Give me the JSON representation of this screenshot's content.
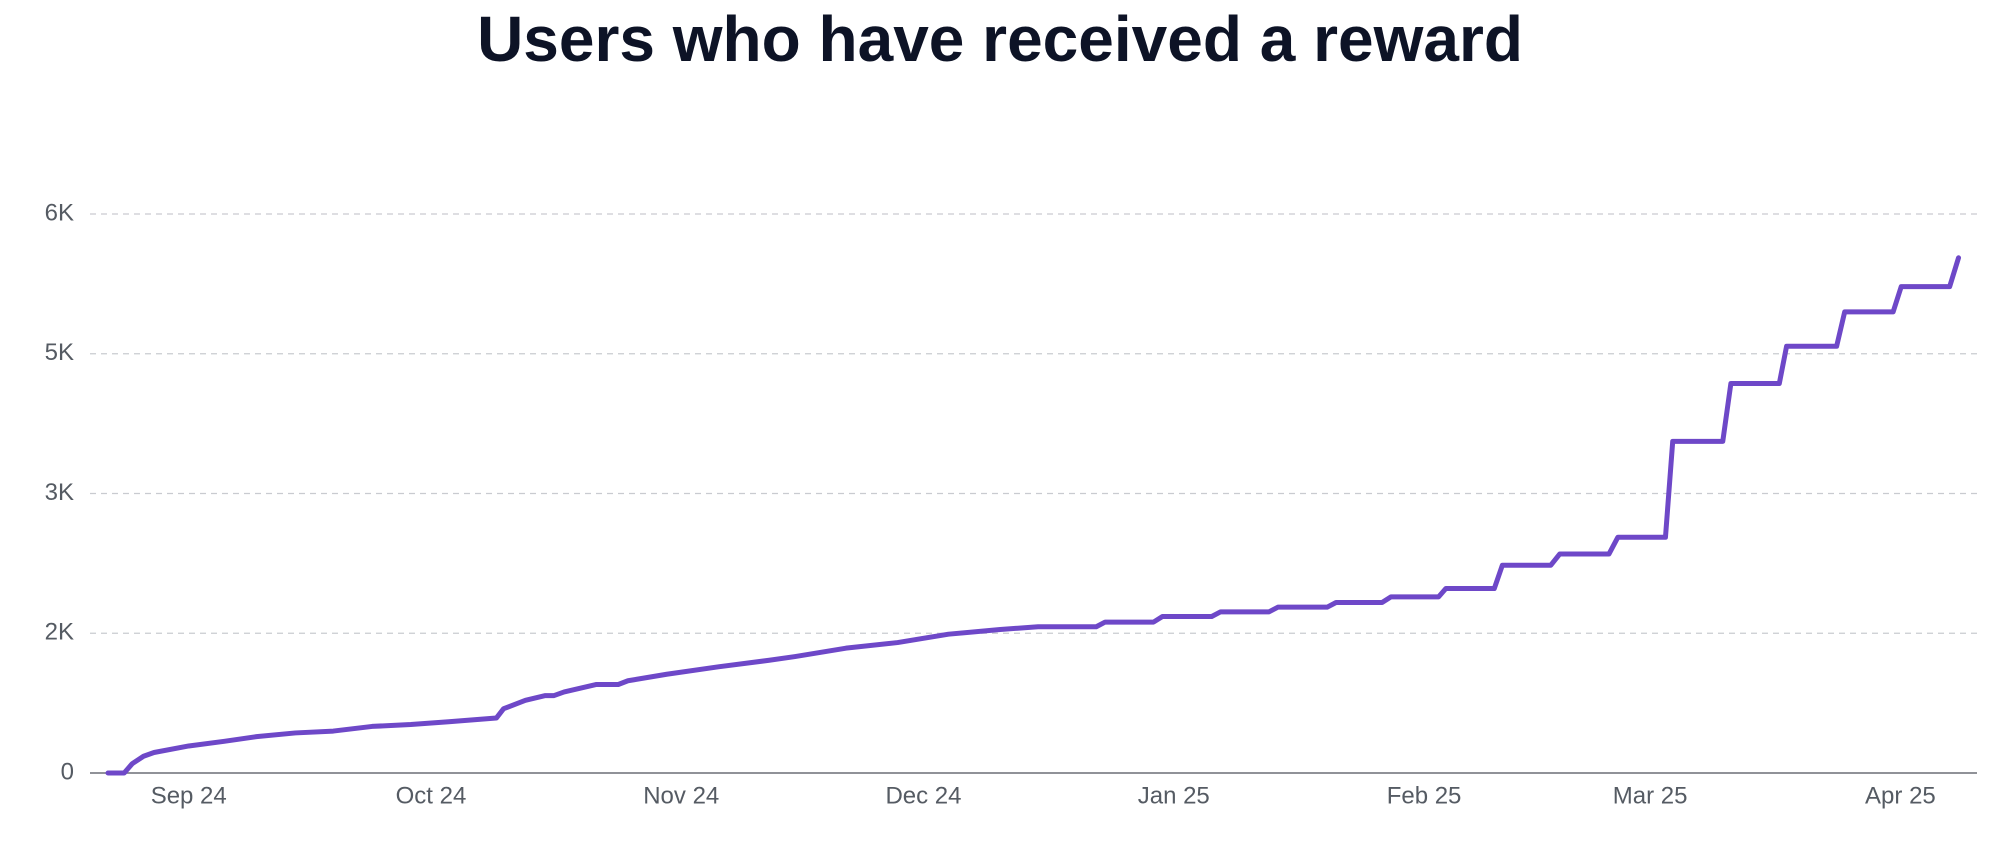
{
  "chart_data": {
    "type": "line",
    "title": "Users who have received a reward",
    "color": "#6e48c8",
    "grid": true,
    "xlim": [
      0,
      230
    ],
    "xticks": [
      {
        "value": 10,
        "label": "Sep 24"
      },
      {
        "value": 40,
        "label": "Oct 24"
      },
      {
        "value": 71,
        "label": "Nov 24"
      },
      {
        "value": 101,
        "label": "Dec 24"
      },
      {
        "value": 132,
        "label": "Jan 25"
      },
      {
        "value": 163,
        "label": "Feb 25"
      },
      {
        "value": 191,
        "label": "Mar 25"
      },
      {
        "value": 222,
        "label": "Apr 25"
      }
    ],
    "ylim": [
      0,
      6000
    ],
    "yticks": [
      0,
      {
        "value": 1500,
        "label": "2K"
      },
      {
        "value": 3000,
        "label": "3K"
      },
      {
        "value": 4500,
        "label": "5K"
      },
      {
        "value": 6000,
        "label": "6K"
      }
    ],
    "x": [
      0,
      2,
      3,
      4.4,
      5.7,
      10,
      14.4,
      18.4,
      23.2,
      27.9,
      32.7,
      37.5,
      42.2,
      48.1,
      49,
      51.7,
      54.1,
      55.2,
      56.5,
      60.5,
      63.2,
      64.4,
      69.2,
      75.6,
      81.9,
      85.1,
      91.4,
      97.8,
      104.1,
      110.5,
      115.2,
      122.4,
      123.5,
      129.5,
      130.6,
      136.7,
      137.8,
      143.8,
      144.9,
      151,
      152.1,
      157.8,
      158.9,
      164.8,
      165.7,
      171.7,
      172.7,
      178.7,
      179.8,
      185.9,
      187,
      192.9,
      193.8,
      200,
      201,
      207,
      207.9,
      214.1,
      215.1,
      221.1,
      222.1,
      228.1,
      229.2
    ],
    "values": [
      0,
      0,
      100,
      180,
      220,
      290,
      340,
      390,
      430,
      450,
      500,
      520,
      550,
      590,
      690,
      780,
      830,
      830,
      870,
      950,
      950,
      990,
      1060,
      1140,
      1210,
      1250,
      1340,
      1400,
      1490,
      1540,
      1570,
      1570,
      1620,
      1620,
      1680,
      1680,
      1730,
      1730,
      1780,
      1780,
      1830,
      1830,
      1890,
      1890,
      1980,
      1980,
      2230,
      2230,
      2350,
      2350,
      2530,
      2530,
      3560,
      3560,
      4180,
      4180,
      4580,
      4580,
      4950,
      4950,
      5220,
      5220,
      5530
    ]
  }
}
